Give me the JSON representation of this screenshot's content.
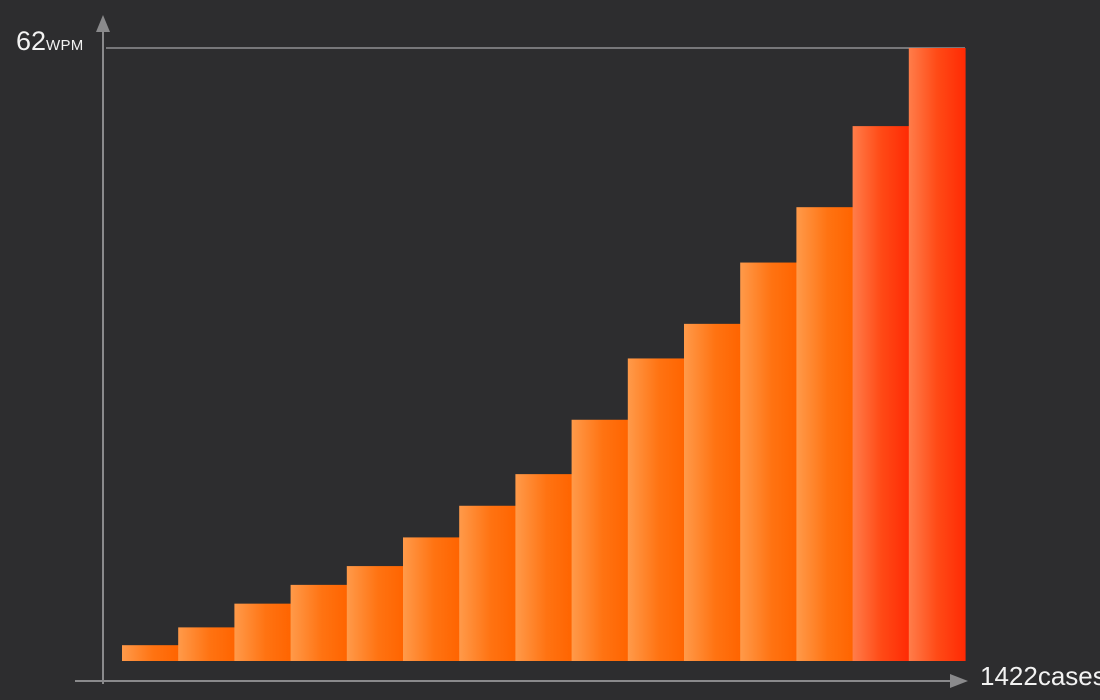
{
  "chart_data": {
    "type": "bar",
    "title": "",
    "xlabel": "",
    "ylabel": "",
    "y_max_label": {
      "value": "62",
      "unit": "WPM"
    },
    "x_max_label": {
      "value": "1422",
      "unit": "cases"
    },
    "ylim": [
      0,
      62
    ],
    "values": [
      1.6,
      3.4,
      5.8,
      7.7,
      9.6,
      12.5,
      15.7,
      18.9,
      24.4,
      30.6,
      34.1,
      40.3,
      45.9,
      54.1,
      62.0
    ],
    "grid": false,
    "legend": "none"
  },
  "colors": {
    "background": "#2d2d2f",
    "axis": "#8a8a8c",
    "bar_light": "#ff8f3f",
    "bar_mid": "#ff6a00",
    "bar_dark": "#ff3008",
    "text": "#f2f2f2"
  }
}
